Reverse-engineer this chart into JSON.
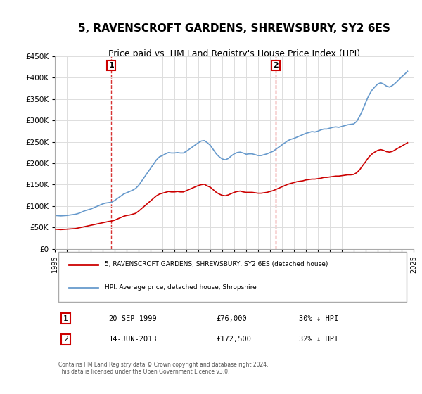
{
  "title": "5, RAVENSCROFT GARDENS, SHREWSBURY, SY2 6ES",
  "subtitle": "Price paid vs. HM Land Registry's House Price Index (HPI)",
  "title_fontsize": 11,
  "subtitle_fontsize": 9,
  "background_color": "#ffffff",
  "plot_bg_color": "#ffffff",
  "grid_color": "#dddddd",
  "hpi_color": "#6699cc",
  "property_color": "#cc0000",
  "sale1_year": 1999.72,
  "sale1_price": 76000,
  "sale1_label": "1",
  "sale2_year": 2013.45,
  "sale2_price": 172500,
  "sale2_label": "2",
  "xmin": 1995,
  "xmax": 2025,
  "ymin": 0,
  "ymax": 450000,
  "yticks": [
    0,
    50000,
    100000,
    150000,
    200000,
    250000,
    300000,
    350000,
    400000,
    450000
  ],
  "ytick_labels": [
    "£0",
    "£50K",
    "£100K",
    "£150K",
    "£200K",
    "£250K",
    "£300K",
    "£350K",
    "£400K",
    "£450K"
  ],
  "xtick_years": [
    1995,
    1996,
    1997,
    1998,
    1999,
    2000,
    2001,
    2002,
    2003,
    2004,
    2005,
    2006,
    2007,
    2008,
    2009,
    2010,
    2011,
    2012,
    2013,
    2014,
    2015,
    2016,
    2017,
    2018,
    2019,
    2020,
    2021,
    2022,
    2023,
    2024,
    2025
  ],
  "legend_line1": "5, RAVENSCROFT GARDENS, SHREWSBURY, SY2 6ES (detached house)",
  "legend_line2": "HPI: Average price, detached house, Shropshire",
  "table_row1_num": "1",
  "table_row1_date": "20-SEP-1999",
  "table_row1_price": "£76,000",
  "table_row1_hpi": "30% ↓ HPI",
  "table_row2_num": "2",
  "table_row2_date": "14-JUN-2013",
  "table_row2_price": "£172,500",
  "table_row2_hpi": "32% ↓ HPI",
  "footer": "Contains HM Land Registry data © Crown copyright and database right 2024.\nThis data is licensed under the Open Government Licence v3.0.",
  "hpi_years": [
    1995.0,
    1995.25,
    1995.5,
    1995.75,
    1996.0,
    1996.25,
    1996.5,
    1996.75,
    1997.0,
    1997.25,
    1997.5,
    1997.75,
    1998.0,
    1998.25,
    1998.5,
    1998.75,
    1999.0,
    1999.25,
    1999.5,
    1999.75,
    2000.0,
    2000.25,
    2000.5,
    2000.75,
    2001.0,
    2001.25,
    2001.5,
    2001.75,
    2002.0,
    2002.25,
    2002.5,
    2002.75,
    2003.0,
    2003.25,
    2003.5,
    2003.75,
    2004.0,
    2004.25,
    2004.5,
    2004.75,
    2005.0,
    2005.25,
    2005.5,
    2005.75,
    2006.0,
    2006.25,
    2006.5,
    2006.75,
    2007.0,
    2007.25,
    2007.5,
    2007.75,
    2008.0,
    2008.25,
    2008.5,
    2008.75,
    2009.0,
    2009.25,
    2009.5,
    2009.75,
    2010.0,
    2010.25,
    2010.5,
    2010.75,
    2011.0,
    2011.25,
    2011.5,
    2011.75,
    2012.0,
    2012.25,
    2012.5,
    2012.75,
    2013.0,
    2013.25,
    2013.5,
    2013.75,
    2014.0,
    2014.25,
    2014.5,
    2014.75,
    2015.0,
    2015.25,
    2015.5,
    2015.75,
    2016.0,
    2016.25,
    2016.5,
    2016.75,
    2017.0,
    2017.25,
    2017.5,
    2017.75,
    2018.0,
    2018.25,
    2018.5,
    2018.75,
    2019.0,
    2019.25,
    2019.5,
    2019.75,
    2020.0,
    2020.25,
    2020.5,
    2020.75,
    2021.0,
    2021.25,
    2021.5,
    2021.75,
    2022.0,
    2022.25,
    2022.5,
    2022.75,
    2023.0,
    2023.25,
    2023.5,
    2023.75,
    2024.0,
    2024.25,
    2024.5
  ],
  "hpi_values": [
    78000,
    77500,
    77000,
    77500,
    78000,
    79000,
    80000,
    81000,
    83000,
    86000,
    89000,
    91000,
    93000,
    96000,
    99000,
    102000,
    105000,
    107000,
    108000,
    109000,
    113000,
    118000,
    123000,
    128000,
    131000,
    134000,
    137000,
    141000,
    148000,
    158000,
    168000,
    178000,
    188000,
    198000,
    208000,
    215000,
    218000,
    222000,
    225000,
    224000,
    224000,
    225000,
    224000,
    224000,
    228000,
    233000,
    238000,
    243000,
    248000,
    252000,
    253000,
    248000,
    242000,
    232000,
    222000,
    215000,
    210000,
    208000,
    211000,
    217000,
    222000,
    225000,
    226000,
    224000,
    221000,
    222000,
    222000,
    220000,
    218000,
    218000,
    220000,
    222000,
    225000,
    228000,
    233000,
    238000,
    243000,
    248000,
    253000,
    256000,
    258000,
    261000,
    264000,
    267000,
    270000,
    272000,
    274000,
    273000,
    275000,
    278000,
    280000,
    280000,
    282000,
    284000,
    285000,
    284000,
    286000,
    288000,
    290000,
    291000,
    292000,
    298000,
    310000,
    325000,
    342000,
    358000,
    370000,
    378000,
    385000,
    388000,
    385000,
    380000,
    378000,
    382000,
    388000,
    395000,
    402000,
    408000,
    415000
  ],
  "prop_years": [
    1995.0,
    1995.25,
    1995.5,
    1995.75,
    1996.0,
    1996.25,
    1996.5,
    1996.75,
    1997.0,
    1997.25,
    1997.5,
    1997.75,
    1998.0,
    1998.25,
    1998.5,
    1998.75,
    1999.0,
    1999.25,
    1999.5,
    1999.75,
    2000.0,
    2000.25,
    2000.5,
    2000.75,
    2001.0,
    2001.25,
    2001.5,
    2001.75,
    2002.0,
    2002.25,
    2002.5,
    2002.75,
    2003.0,
    2003.25,
    2003.5,
    2003.75,
    2004.0,
    2004.25,
    2004.5,
    2004.75,
    2005.0,
    2005.25,
    2005.5,
    2005.75,
    2006.0,
    2006.25,
    2006.5,
    2006.75,
    2007.0,
    2007.25,
    2007.5,
    2007.75,
    2008.0,
    2008.25,
    2008.5,
    2008.75,
    2009.0,
    2009.25,
    2009.5,
    2009.75,
    2010.0,
    2010.25,
    2010.5,
    2010.75,
    2011.0,
    2011.25,
    2011.5,
    2011.75,
    2012.0,
    2012.25,
    2012.5,
    2012.75,
    2013.0,
    2013.25,
    2013.5,
    2013.75,
    2014.0,
    2014.25,
    2014.5,
    2014.75,
    2015.0,
    2015.25,
    2015.5,
    2015.75,
    2016.0,
    2016.25,
    2016.5,
    2016.75,
    2017.0,
    2017.25,
    2017.5,
    2017.75,
    2018.0,
    2018.25,
    2018.5,
    2018.75,
    2019.0,
    2019.25,
    2019.5,
    2019.75,
    2020.0,
    2020.25,
    2020.5,
    2020.75,
    2021.0,
    2021.25,
    2021.5,
    2021.75,
    2022.0,
    2022.25,
    2022.5,
    2022.75,
    2023.0,
    2023.25,
    2023.5,
    2023.75,
    2024.0,
    2024.25,
    2024.5
  ],
  "prop_values": [
    46000,
    45500,
    45000,
    45500,
    46000,
    46500,
    47000,
    47500,
    49000,
    50500,
    52000,
    53500,
    55000,
    56500,
    58000,
    59500,
    61000,
    62500,
    64000,
    65000,
    67000,
    70000,
    73000,
    76000,
    78000,
    79000,
    81000,
    83000,
    88000,
    94000,
    100000,
    106000,
    112000,
    118000,
    124000,
    128000,
    130000,
    132000,
    134000,
    133000,
    133000,
    134000,
    133000,
    133000,
    136000,
    139000,
    142000,
    145000,
    148000,
    150000,
    151000,
    147000,
    144000,
    138000,
    132000,
    128000,
    125000,
    124000,
    126000,
    129000,
    132000,
    134000,
    135000,
    133000,
    132000,
    132000,
    132000,
    131000,
    130000,
    130000,
    131000,
    132000,
    134000,
    136000,
    139000,
    142000,
    145000,
    148000,
    151000,
    153000,
    155000,
    157000,
    158000,
    159000,
    161000,
    162000,
    163000,
    163000,
    164000,
    165000,
    167000,
    167000,
    168000,
    169000,
    170000,
    170000,
    171000,
    172000,
    173000,
    173000,
    174000,
    178000,
    185000,
    195000,
    204000,
    214000,
    221000,
    226000,
    230000,
    232000,
    230000,
    227000,
    226000,
    228000,
    232000,
    236000,
    240000,
    244000,
    248000
  ]
}
